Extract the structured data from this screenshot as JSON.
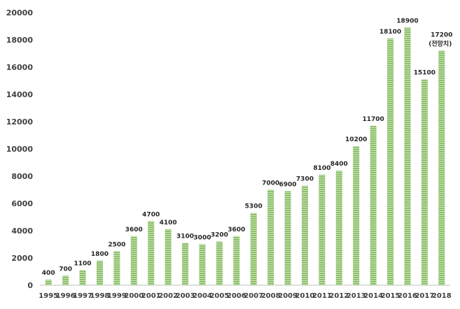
{
  "chart_data": {
    "type": "bar",
    "categories": [
      "1995",
      "1996",
      "1997",
      "1998",
      "1999",
      "2000",
      "2001",
      "2002",
      "2003",
      "2004",
      "2005",
      "2006",
      "2007",
      "2008",
      "2009",
      "2010",
      "2011",
      "2012",
      "2013",
      "2014",
      "2015",
      "2016",
      "2017",
      "2018"
    ],
    "values": [
      400,
      700,
      1100,
      1800,
      2500,
      3600,
      4700,
      4100,
      3100,
      3000,
      3200,
      3600,
      5300,
      7000,
      6900,
      7300,
      8100,
      8400,
      10200,
      11700,
      18100,
      18900,
      15100,
      17200
    ],
    "data_labels": [
      "400",
      "700",
      "1100",
      "1800",
      "2500",
      "3600",
      "4700",
      "4100",
      "3100",
      "3000",
      "3200",
      "3600",
      "5300",
      "7000",
      "6900",
      "7300",
      "8100",
      "8400",
      "10200",
      "11700",
      "18100",
      "18900",
      "15100",
      "17200"
    ],
    "annotation": {
      "category": "2018",
      "text": "(전망치)"
    },
    "yticks": [
      "0",
      "2000",
      "4000",
      "6000",
      "8000",
      "10000",
      "12000",
      "14000",
      "16000",
      "18000",
      "20000"
    ],
    "ylim": [
      0,
      20000
    ],
    "title": "",
    "xlabel": "",
    "ylabel": "",
    "grid": false,
    "legend": "none",
    "bar_color": "#8dc16a",
    "bar_stripe_color": "#ffffff"
  }
}
